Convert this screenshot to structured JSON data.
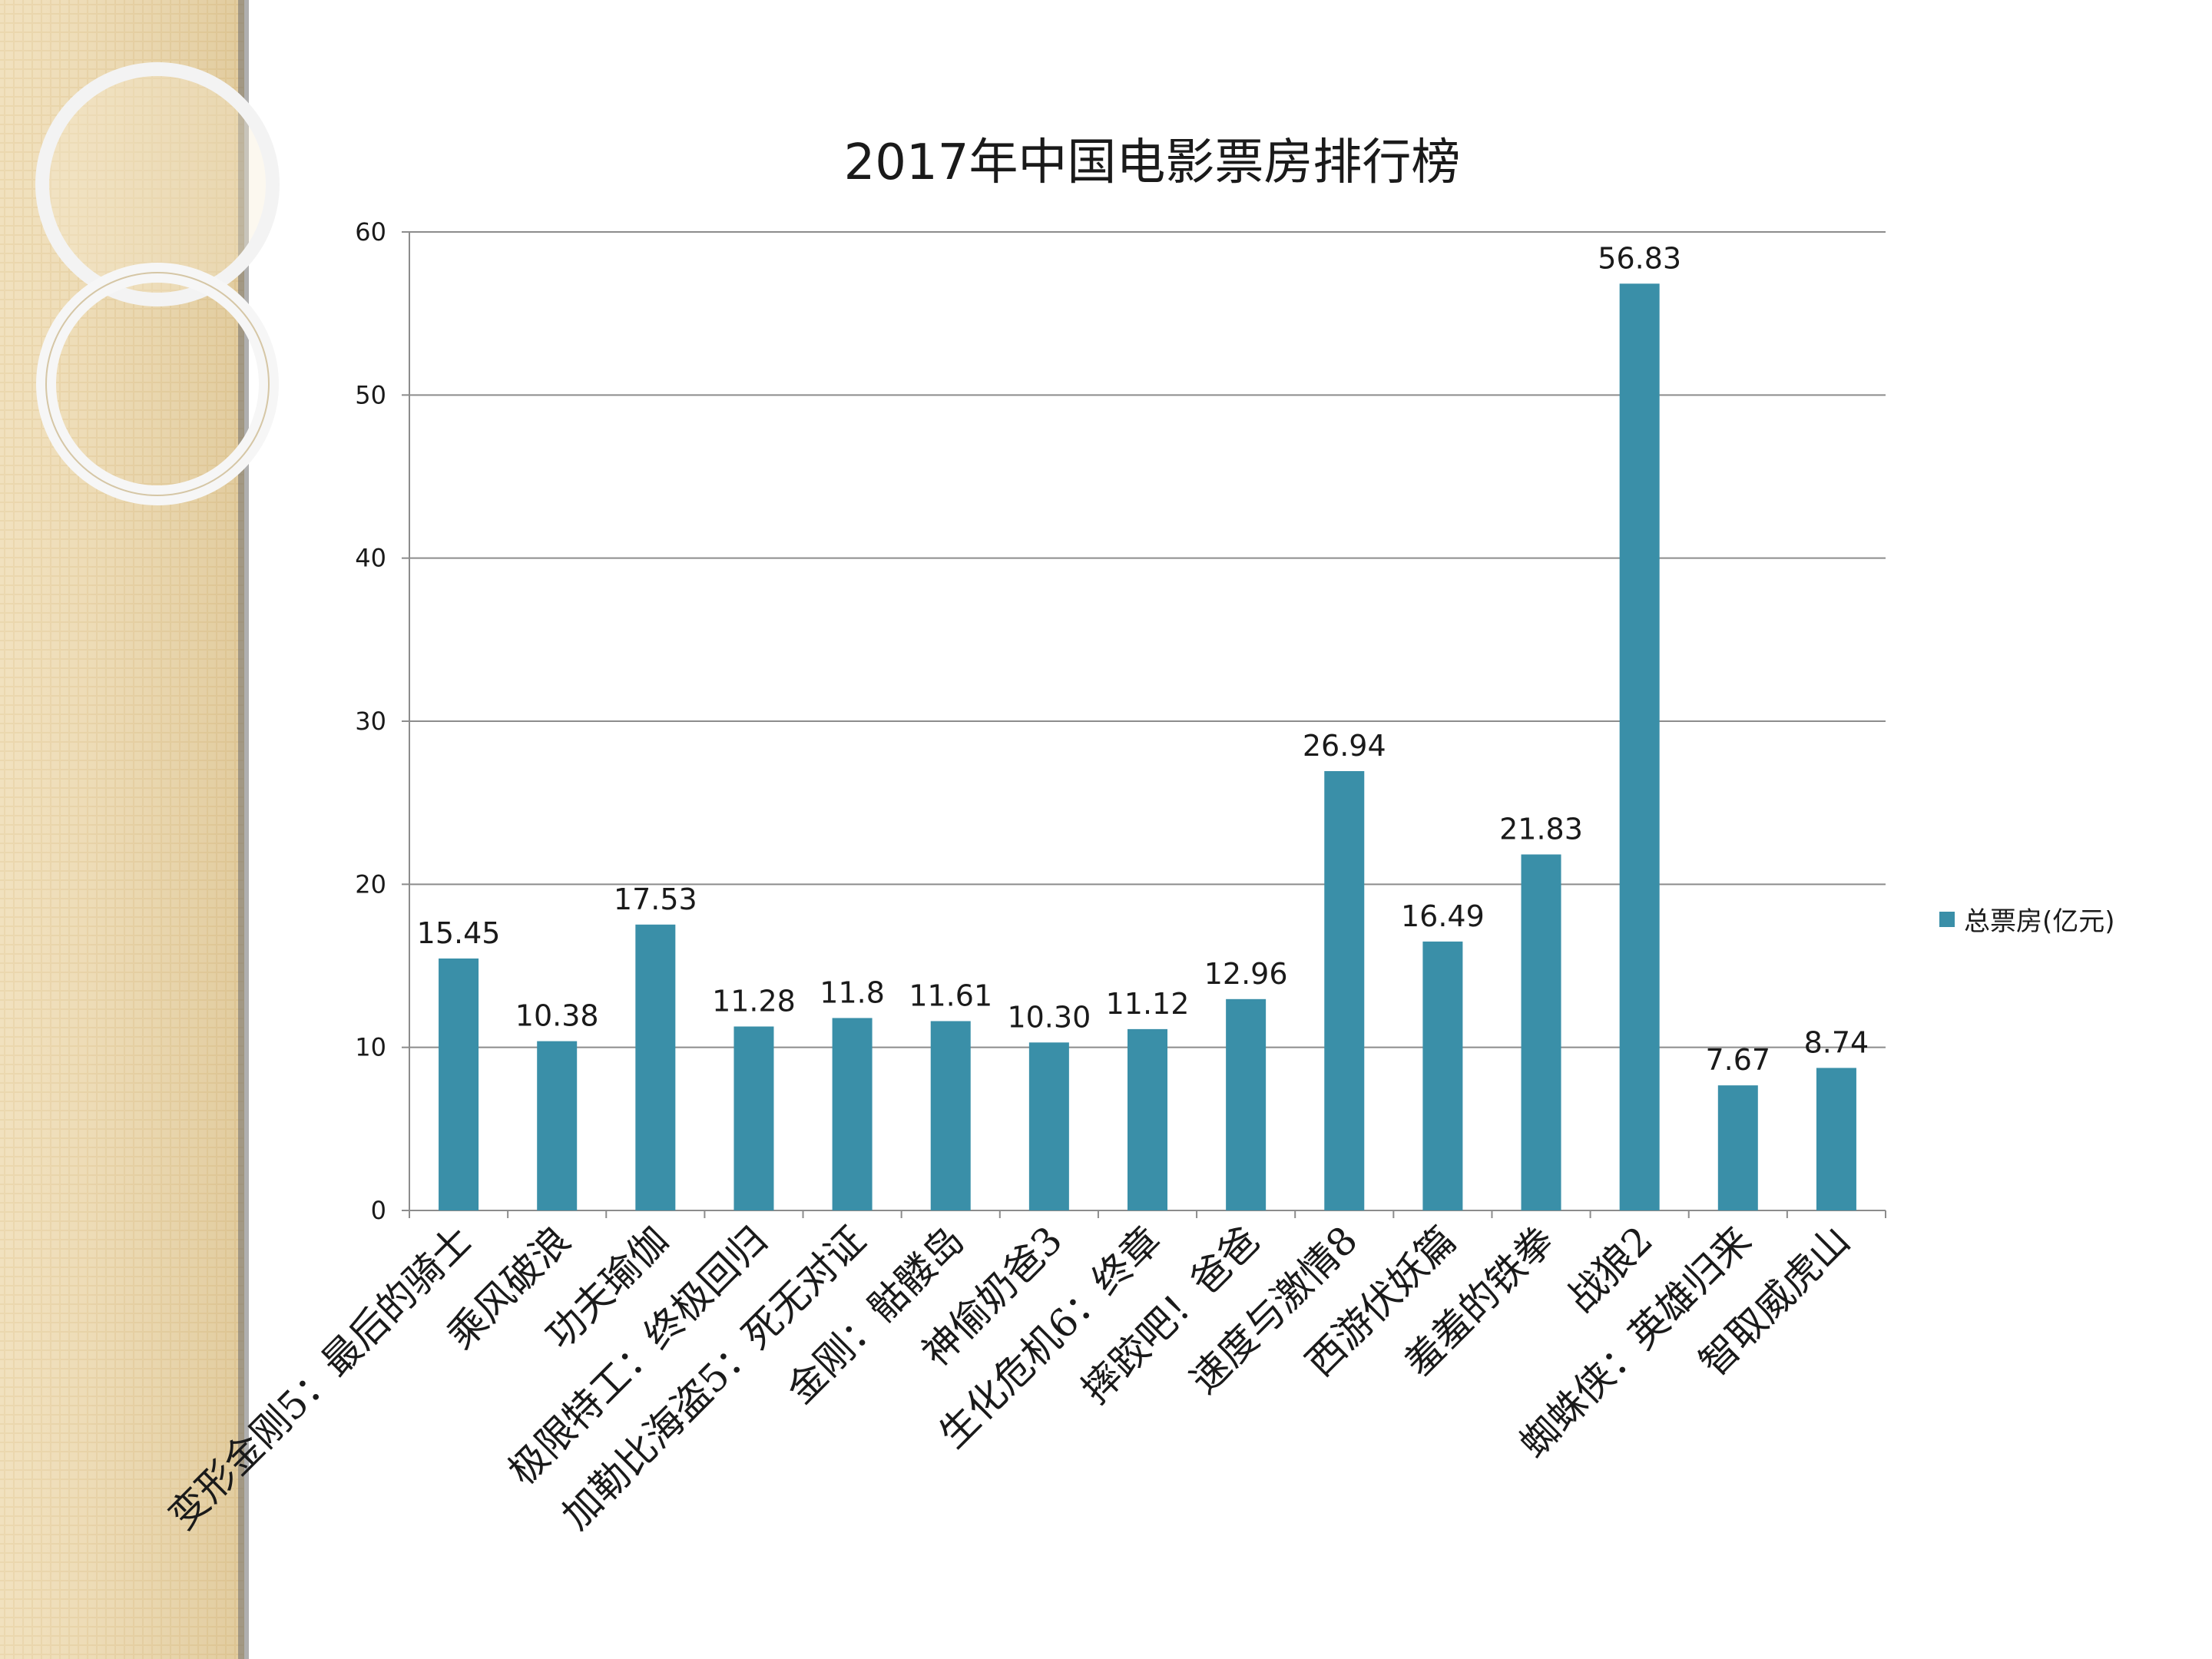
{
  "chart_data": {
    "type": "bar",
    "title": "2017年中国电影票房排行榜",
    "categories": [
      "变形金刚5：最后的骑士",
      "乘风破浪",
      "功夫瑜伽",
      "极限特工：终极回归",
      "加勒比海盗5：死无对证",
      "金刚：骷髅岛",
      "神偷奶爸3",
      "生化危机6：终章",
      "摔跤吧！爸爸",
      "速度与激情8",
      "西游伏妖篇",
      "羞羞的铁拳",
      "战狼2",
      "蜘蛛侠：英雄归来",
      "智取威虎山"
    ],
    "series": [
      {
        "name": "总票房(亿元)",
        "values": [
          15.45,
          10.38,
          17.53,
          11.28,
          11.8,
          11.61,
          10.3,
          11.12,
          12.96,
          26.94,
          16.49,
          21.83,
          56.83,
          7.67,
          8.74
        ],
        "labels": [
          "15.45",
          "10.38",
          "17.53",
          "11.28",
          "11.8",
          "11.61",
          "10.30",
          "11.12",
          "12.96",
          "26.94",
          "16.49",
          "21.83",
          "56.83",
          "7.67",
          "8.74"
        ]
      }
    ],
    "ylim": [
      0,
      60
    ],
    "yticks": [
      0,
      10,
      20,
      30,
      40,
      50,
      60
    ],
    "grid": true,
    "legend_position": "right",
    "xlabel": "",
    "ylabel": ""
  },
  "colors": {
    "bar": "#3a8fa8",
    "grid": "#8c8c8c",
    "sidebar": "#efdcb3"
  }
}
